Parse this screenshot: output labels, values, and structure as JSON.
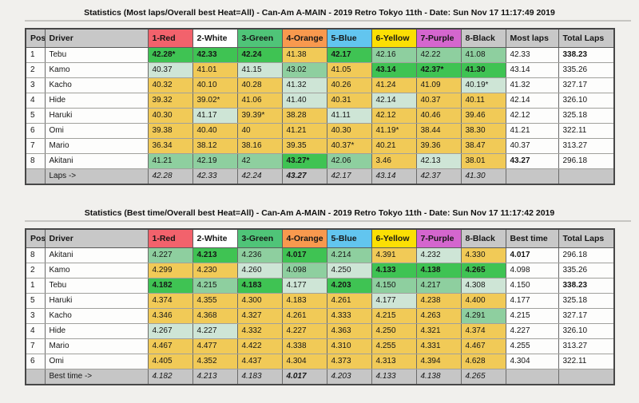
{
  "colors": {
    "header_gray": "#c8c8c8",
    "footer_gray": "#c6c6c6",
    "heat_headers": [
      "#f2626c",
      "#ffffff",
      "#4fc478",
      "#f8994e",
      "#62c5ef",
      "#fbdf04",
      "#d466ce",
      "#c8c8c8"
    ],
    "highlight": [
      "#f1ca57",
      "#3fc353",
      "#8ecf9f",
      "#cee5d6"
    ]
  },
  "tables": [
    {
      "title": "Statistics (Most laps/Overall best Heat=All) - Can-Am A-MAIN - 2019 Retro Tokyo 11th - Date: Sun Nov 17 11:17:49 2019",
      "columns": [
        "Pos",
        "Driver",
        "1-Red",
        "2-White",
        "3-Green",
        "4-Orange",
        "5-Blue",
        "6-Yellow",
        "7-Purple",
        "8-Black",
        "Most laps",
        "Total Laps"
      ],
      "rows": [
        {
          "pos": "1",
          "driver": "Tebu",
          "heats": [
            {
              "v": "42.28*",
              "h": 1
            },
            {
              "v": "42.33",
              "h": 1
            },
            {
              "v": "42.24",
              "h": 1
            },
            {
              "v": "41.38",
              "h": 0
            },
            {
              "v": "42.17",
              "h": 1
            },
            {
              "v": "42.16",
              "h": 2
            },
            {
              "v": "42.22",
              "h": 2
            },
            {
              "v": "41.08",
              "h": 2
            }
          ],
          "summary": "42.33",
          "summary_bold": false,
          "total": "338.23",
          "total_bold": true
        },
        {
          "pos": "2",
          "driver": "Kamo",
          "heats": [
            {
              "v": "40.37",
              "h": 3
            },
            {
              "v": "41.01",
              "h": 0
            },
            {
              "v": "41.15",
              "h": 3
            },
            {
              "v": "43.02",
              "h": 2
            },
            {
              "v": "41.05",
              "h": 0
            },
            {
              "v": "43.14",
              "h": 1
            },
            {
              "v": "42.37*",
              "h": 1
            },
            {
              "v": "41.30",
              "h": 1
            }
          ],
          "summary": "43.14",
          "summary_bold": false,
          "total": "335.26",
          "total_bold": false
        },
        {
          "pos": "3",
          "driver": "Kacho",
          "heats": [
            {
              "v": "40.32",
              "h": 0
            },
            {
              "v": "40.10",
              "h": 0
            },
            {
              "v": "40.28",
              "h": 0
            },
            {
              "v": "41.32",
              "h": 3
            },
            {
              "v": "40.26",
              "h": 0
            },
            {
              "v": "41.24",
              "h": 0
            },
            {
              "v": "41.09",
              "h": 0
            },
            {
              "v": "40.19*",
              "h": 3
            }
          ],
          "summary": "41.32",
          "summary_bold": false,
          "total": "327.17",
          "total_bold": false
        },
        {
          "pos": "4",
          "driver": "Hide",
          "heats": [
            {
              "v": "39.32",
              "h": 0
            },
            {
              "v": "39.02*",
              "h": 0
            },
            {
              "v": "41.06",
              "h": 0
            },
            {
              "v": "41.40",
              "h": 3
            },
            {
              "v": "40.31",
              "h": 0
            },
            {
              "v": "42.14",
              "h": 3
            },
            {
              "v": "40.37",
              "h": 0
            },
            {
              "v": "40.11",
              "h": 0
            }
          ],
          "summary": "42.14",
          "summary_bold": false,
          "total": "326.10",
          "total_bold": false
        },
        {
          "pos": "5",
          "driver": "Haruki",
          "heats": [
            {
              "v": "40.30",
              "h": 0
            },
            {
              "v": "41.17",
              "h": 3
            },
            {
              "v": "39.39*",
              "h": 0
            },
            {
              "v": "38.28",
              "h": 0
            },
            {
              "v": "41.11",
              "h": 3
            },
            {
              "v": "42.12",
              "h": 0
            },
            {
              "v": "40.46",
              "h": 0
            },
            {
              "v": "39.46",
              "h": 0
            }
          ],
          "summary": "42.12",
          "summary_bold": false,
          "total": "325.18",
          "total_bold": false
        },
        {
          "pos": "6",
          "driver": "Omi",
          "heats": [
            {
              "v": "39.38",
              "h": 0
            },
            {
              "v": "40.40",
              "h": 0
            },
            {
              "v": "40",
              "h": 0
            },
            {
              "v": "41.21",
              "h": 0
            },
            {
              "v": "40.30",
              "h": 0
            },
            {
              "v": "41.19*",
              "h": 0
            },
            {
              "v": "38.44",
              "h": 0
            },
            {
              "v": "38.30",
              "h": 0
            }
          ],
          "summary": "41.21",
          "summary_bold": false,
          "total": "322.11",
          "total_bold": false
        },
        {
          "pos": "7",
          "driver": "Mario",
          "heats": [
            {
              "v": "36.34",
              "h": 0
            },
            {
              "v": "38.12",
              "h": 0
            },
            {
              "v": "38.16",
              "h": 0
            },
            {
              "v": "39.35",
              "h": 0
            },
            {
              "v": "40.37*",
              "h": 0
            },
            {
              "v": "40.21",
              "h": 0
            },
            {
              "v": "39.36",
              "h": 0
            },
            {
              "v": "38.47",
              "h": 0
            }
          ],
          "summary": "40.37",
          "summary_bold": false,
          "total": "313.27",
          "total_bold": false
        },
        {
          "pos": "8",
          "driver": "Akitani",
          "heats": [
            {
              "v": "41.21",
              "h": 2
            },
            {
              "v": "42.19",
              "h": 2
            },
            {
              "v": "42",
              "h": 2
            },
            {
              "v": "43.27*",
              "h": 1
            },
            {
              "v": "42.06",
              "h": 2
            },
            {
              "v": "3.46",
              "h": 0
            },
            {
              "v": "42.13",
              "h": 3
            },
            {
              "v": "38.01",
              "h": 0
            }
          ],
          "summary": "43.27",
          "summary_bold": true,
          "total": "296.18",
          "total_bold": false
        }
      ],
      "footer": {
        "label": "Laps ->",
        "values": [
          "42.28",
          "42.33",
          "42.24",
          "43.27",
          "42.17",
          "43.14",
          "42.37",
          "41.30"
        ],
        "bold_index": 3
      }
    },
    {
      "title": "Statistics (Best time/Overall best Heat=All) - Can-Am A-MAIN - 2019 Retro Tokyo 11th - Date: Sun Nov 17 11:17:42 2019",
      "columns": [
        "Pos",
        "Driver",
        "1-Red",
        "2-White",
        "3-Green",
        "4-Orange",
        "5-Blue",
        "6-Yellow",
        "7-Purple",
        "8-Black",
        "Best time",
        "Total Laps"
      ],
      "rows": [
        {
          "pos": "8",
          "driver": "Akitani",
          "heats": [
            {
              "v": "4.227",
              "h": 2
            },
            {
              "v": "4.213",
              "h": 1
            },
            {
              "v": "4.236",
              "h": 2
            },
            {
              "v": "4.017",
              "h": 1
            },
            {
              "v": "4.214",
              "h": 2
            },
            {
              "v": "4.391",
              "h": 0
            },
            {
              "v": "4.232",
              "h": 3
            },
            {
              "v": "4.330",
              "h": 0
            }
          ],
          "summary": "4.017",
          "summary_bold": true,
          "total": "296.18",
          "total_bold": false
        },
        {
          "pos": "2",
          "driver": "Kamo",
          "heats": [
            {
              "v": "4.299",
              "h": 0
            },
            {
              "v": "4.230",
              "h": 0
            },
            {
              "v": "4.260",
              "h": 3
            },
            {
              "v": "4.098",
              "h": 2
            },
            {
              "v": "4.250",
              "h": 3
            },
            {
              "v": "4.133",
              "h": 1
            },
            {
              "v": "4.138",
              "h": 1
            },
            {
              "v": "4.265",
              "h": 1
            }
          ],
          "summary": "4.098",
          "summary_bold": false,
          "total": "335.26",
          "total_bold": false
        },
        {
          "pos": "1",
          "driver": "Tebu",
          "heats": [
            {
              "v": "4.182",
              "h": 1
            },
            {
              "v": "4.215",
              "h": 2
            },
            {
              "v": "4.183",
              "h": 1
            },
            {
              "v": "4.177",
              "h": 3
            },
            {
              "v": "4.203",
              "h": 1
            },
            {
              "v": "4.150",
              "h": 2
            },
            {
              "v": "4.217",
              "h": 2
            },
            {
              "v": "4.308",
              "h": 3
            }
          ],
          "summary": "4.150",
          "summary_bold": false,
          "total": "338.23",
          "total_bold": true
        },
        {
          "pos": "5",
          "driver": "Haruki",
          "heats": [
            {
              "v": "4.374",
              "h": 0
            },
            {
              "v": "4.355",
              "h": 0
            },
            {
              "v": "4.300",
              "h": 0
            },
            {
              "v": "4.183",
              "h": 0
            },
            {
              "v": "4.261",
              "h": 0
            },
            {
              "v": "4.177",
              "h": 3
            },
            {
              "v": "4.238",
              "h": 0
            },
            {
              "v": "4.400",
              "h": 0
            }
          ],
          "summary": "4.177",
          "summary_bold": false,
          "total": "325.18",
          "total_bold": false
        },
        {
          "pos": "3",
          "driver": "Kacho",
          "heats": [
            {
              "v": "4.346",
              "h": 0
            },
            {
              "v": "4.368",
              "h": 0
            },
            {
              "v": "4.327",
              "h": 0
            },
            {
              "v": "4.261",
              "h": 0
            },
            {
              "v": "4.333",
              "h": 0
            },
            {
              "v": "4.215",
              "h": 0
            },
            {
              "v": "4.263",
              "h": 0
            },
            {
              "v": "4.291",
              "h": 2
            }
          ],
          "summary": "4.215",
          "summary_bold": false,
          "total": "327.17",
          "total_bold": false
        },
        {
          "pos": "4",
          "driver": "Hide",
          "heats": [
            {
              "v": "4.267",
              "h": 3
            },
            {
              "v": "4.227",
              "h": 3
            },
            {
              "v": "4.332",
              "h": 0
            },
            {
              "v": "4.227",
              "h": 0
            },
            {
              "v": "4.363",
              "h": 0
            },
            {
              "v": "4.250",
              "h": 0
            },
            {
              "v": "4.321",
              "h": 0
            },
            {
              "v": "4.374",
              "h": 0
            }
          ],
          "summary": "4.227",
          "summary_bold": false,
          "total": "326.10",
          "total_bold": false
        },
        {
          "pos": "7",
          "driver": "Mario",
          "heats": [
            {
              "v": "4.467",
              "h": 0
            },
            {
              "v": "4.477",
              "h": 0
            },
            {
              "v": "4.422",
              "h": 0
            },
            {
              "v": "4.338",
              "h": 0
            },
            {
              "v": "4.310",
              "h": 0
            },
            {
              "v": "4.255",
              "h": 0
            },
            {
              "v": "4.331",
              "h": 0
            },
            {
              "v": "4.467",
              "h": 0
            }
          ],
          "summary": "4.255",
          "summary_bold": false,
          "total": "313.27",
          "total_bold": false
        },
        {
          "pos": "6",
          "driver": "Omi",
          "heats": [
            {
              "v": "4.405",
              "h": 0
            },
            {
              "v": "4.352",
              "h": 0
            },
            {
              "v": "4.437",
              "h": 0
            },
            {
              "v": "4.304",
              "h": 0
            },
            {
              "v": "4.373",
              "h": 0
            },
            {
              "v": "4.313",
              "h": 0
            },
            {
              "v": "4.394",
              "h": 0
            },
            {
              "v": "4.628",
              "h": 0
            }
          ],
          "summary": "4.304",
          "summary_bold": false,
          "total": "322.11",
          "total_bold": false
        }
      ],
      "footer": {
        "label": "Best time ->",
        "values": [
          "4.182",
          "4.213",
          "4.183",
          "4.017",
          "4.203",
          "4.133",
          "4.138",
          "4.265"
        ],
        "bold_index": 3
      }
    }
  ]
}
